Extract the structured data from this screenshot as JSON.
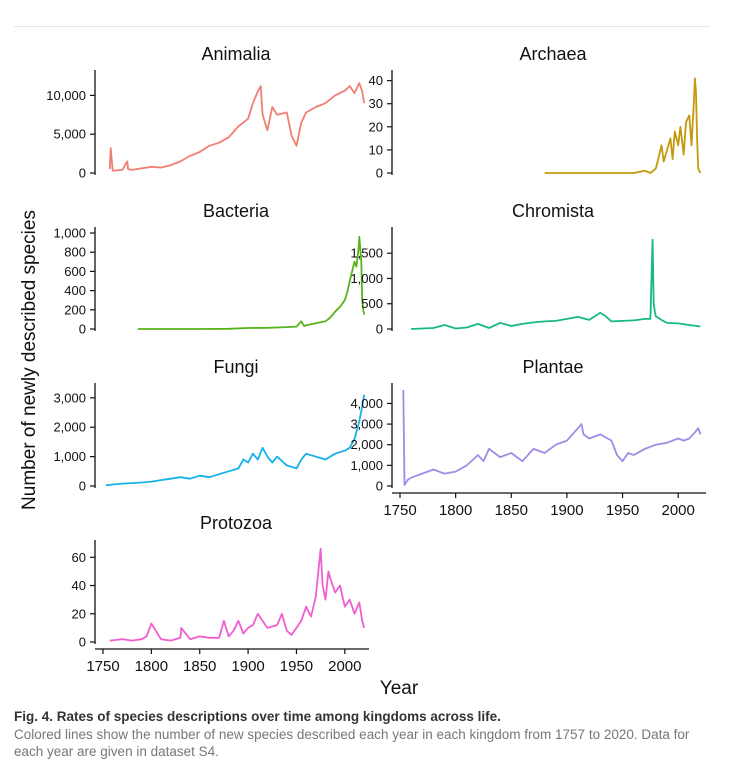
{
  "caption": {
    "title": "Fig. 4. Rates of species descriptions over time among kingdoms across life.",
    "text": "Colored lines show the number of new species described each year in each kingdom from 1757 to 2020. Data for each year are given in dataset S4."
  },
  "chart_data": {
    "type": "line",
    "ylabel": "Number of newly described species",
    "xlabel": "Year",
    "xlim": [
      1750,
      2025
    ],
    "xticks": [
      1750,
      1800,
      1850,
      1900,
      1950,
      2000
    ],
    "xtick_labels": [
      "1750",
      "1800",
      "1850",
      "1900",
      "1950",
      "2000"
    ],
    "panels": [
      {
        "title": "Animalia",
        "color": "#f07f73",
        "ylim": [
          0,
          12500
        ],
        "yticks": [
          0,
          5000,
          10000
        ],
        "ytick_labels": [
          "0",
          "5,000",
          "10,000"
        ],
        "x": [
          1757,
          1758,
          1760,
          1770,
          1775,
          1776,
          1780,
          1790,
          1800,
          1810,
          1820,
          1830,
          1840,
          1850,
          1860,
          1870,
          1880,
          1890,
          1900,
          1905,
          1910,
          1913,
          1915,
          1920,
          1925,
          1930,
          1940,
          1945,
          1950,
          1955,
          1960,
          1970,
          1980,
          1990,
          2000,
          2005,
          2010,
          2015,
          2018,
          2020
        ],
        "values": [
          500,
          3200,
          300,
          400,
          1500,
          500,
          400,
          600,
          800,
          700,
          1000,
          1500,
          2200,
          2700,
          3500,
          3900,
          4600,
          6000,
          7000,
          9000,
          10500,
          11200,
          7500,
          5500,
          8500,
          7500,
          7800,
          4800,
          3500,
          6500,
          7800,
          8500,
          9000,
          10000,
          10600,
          11200,
          10300,
          11600,
          10500,
          9000
        ]
      },
      {
        "title": "Archaea",
        "color": "#c49a0c",
        "ylim": [
          0,
          42
        ],
        "yticks": [
          0,
          10,
          20,
          30,
          40
        ],
        "ytick_labels": [
          "0",
          "10",
          "20",
          "30",
          "40"
        ],
        "x": [
          1880,
          1900,
          1920,
          1940,
          1950,
          1960,
          1970,
          1975,
          1980,
          1983,
          1985,
          1987,
          1990,
          1993,
          1995,
          1997,
          2000,
          2002,
          2005,
          2007,
          2010,
          2012,
          2014,
          2015,
          2016,
          2017,
          2018,
          2020
        ],
        "values": [
          0,
          0,
          0,
          0,
          0,
          0,
          1,
          0,
          2,
          8,
          12,
          5,
          10,
          15,
          6,
          18,
          12,
          20,
          8,
          22,
          25,
          12,
          30,
          41,
          35,
          15,
          2,
          0
        ]
      },
      {
        "title": "Bacteria",
        "color": "#58b31a",
        "ylim": [
          0,
          1000
        ],
        "yticks": [
          0,
          200,
          400,
          600,
          800,
          1000
        ],
        "ytick_labels": [
          "0",
          "200",
          "400",
          "600",
          "800",
          "1,000"
        ],
        "x": [
          1786,
          1800,
          1850,
          1880,
          1900,
          1920,
          1940,
          1950,
          1955,
          1958,
          1960,
          1970,
          1980,
          1985,
          1990,
          1995,
          2000,
          2003,
          2005,
          2008,
          2010,
          2012,
          2014,
          2015,
          2017,
          2018,
          2019,
          2020
        ],
        "values": [
          0,
          0,
          0,
          2,
          10,
          12,
          20,
          25,
          80,
          30,
          40,
          60,
          80,
          120,
          180,
          230,
          300,
          400,
          500,
          620,
          700,
          650,
          820,
          960,
          700,
          300,
          200,
          150
        ]
      },
      {
        "title": "Chromista",
        "color": "#17b983",
        "ylim": [
          0,
          1900
        ],
        "yticks": [
          0,
          500,
          1000,
          1500
        ],
        "ytick_labels": [
          "0",
          "500",
          "1,000",
          "1,500"
        ],
        "x": [
          1760,
          1780,
          1790,
          1800,
          1810,
          1820,
          1830,
          1840,
          1850,
          1860,
          1870,
          1880,
          1890,
          1900,
          1910,
          1920,
          1930,
          1935,
          1940,
          1950,
          1960,
          1970,
          1975,
          1977,
          1978,
          1979,
          1980,
          1985,
          1990,
          2000,
          2010,
          2020
        ],
        "values": [
          0,
          20,
          80,
          10,
          30,
          100,
          20,
          120,
          60,
          100,
          130,
          150,
          160,
          200,
          240,
          180,
          320,
          250,
          150,
          160,
          170,
          200,
          200,
          1770,
          500,
          350,
          250,
          180,
          120,
          110,
          80,
          50
        ]
      },
      {
        "title": "Fungi",
        "color": "#15b2e8",
        "ylim": [
          0,
          3300
        ],
        "yticks": [
          0,
          1000,
          2000,
          3000
        ],
        "ytick_labels": [
          "0",
          "1,000",
          "2,000",
          "3,000"
        ],
        "x": [
          1753,
          1760,
          1770,
          1780,
          1790,
          1800,
          1810,
          1820,
          1830,
          1840,
          1850,
          1860,
          1870,
          1880,
          1890,
          1895,
          1900,
          1905,
          1910,
          1915,
          1920,
          1925,
          1930,
          1940,
          1950,
          1955,
          1960,
          1970,
          1980,
          1990,
          2000,
          2005,
          2010,
          2015,
          2018,
          2020
        ],
        "values": [
          20,
          50,
          80,
          100,
          120,
          150,
          200,
          250,
          300,
          250,
          350,
          300,
          400,
          500,
          600,
          900,
          800,
          1100,
          900,
          1300,
          1000,
          800,
          1000,
          700,
          600,
          900,
          1100,
          1000,
          900,
          1100,
          1200,
          1300,
          1600,
          2200,
          2700,
          3100
        ]
      },
      {
        "title": "Plantae",
        "color": "#a28be6",
        "ylim": [
          0,
          4700
        ],
        "yticks": [
          0,
          1000,
          2000,
          3000,
          4000
        ],
        "ytick_labels": [
          "0",
          "1,000",
          "2,000",
          "3,000",
          "4,000"
        ],
        "x": [
          1753,
          1754,
          1757,
          1760,
          1770,
          1780,
          1790,
          1800,
          1810,
          1820,
          1825,
          1830,
          1840,
          1850,
          1860,
          1870,
          1880,
          1890,
          1900,
          1905,
          1910,
          1913,
          1915,
          1920,
          1930,
          1940,
          1945,
          1950,
          1955,
          1960,
          1970,
          1980,
          1990,
          2000,
          2005,
          2010,
          2015,
          2018,
          2020
        ],
        "values": [
          4650,
          50,
          300,
          400,
          600,
          800,
          600,
          700,
          1000,
          1500,
          1200,
          1800,
          1400,
          1600,
          1200,
          1800,
          1600,
          2000,
          2200,
          2500,
          2800,
          3000,
          2500,
          2300,
          2500,
          2200,
          1500,
          1200,
          1600,
          1500,
          1800,
          2000,
          2100,
          2300,
          2200,
          2300,
          2600,
          2800,
          2500
        ]
      },
      {
        "title": "Protozoa",
        "color": "#f05fd0",
        "ylim": [
          0,
          68
        ],
        "yticks": [
          0,
          20,
          40,
          60
        ],
        "ytick_labels": [
          "0",
          "20",
          "40",
          "60"
        ],
        "x": [
          1757,
          1770,
          1780,
          1790,
          1795,
          1800,
          1810,
          1820,
          1830,
          1831,
          1840,
          1850,
          1860,
          1870,
          1875,
          1880,
          1885,
          1890,
          1895,
          1900,
          1905,
          1910,
          1920,
          1930,
          1935,
          1940,
          1945,
          1950,
          1955,
          1960,
          1965,
          1970,
          1975,
          1977,
          1980,
          1983,
          1985,
          1990,
          1995,
          2000,
          2005,
          2010,
          2015,
          2018,
          2020
        ],
        "values": [
          1,
          2,
          1,
          2,
          4,
          13,
          2,
          1,
          3,
          10,
          2,
          4,
          3,
          3,
          15,
          4,
          8,
          15,
          6,
          10,
          12,
          20,
          10,
          12,
          20,
          8,
          5,
          10,
          15,
          25,
          18,
          32,
          66,
          40,
          30,
          50,
          45,
          35,
          40,
          25,
          30,
          20,
          28,
          15,
          10
        ]
      }
    ]
  }
}
